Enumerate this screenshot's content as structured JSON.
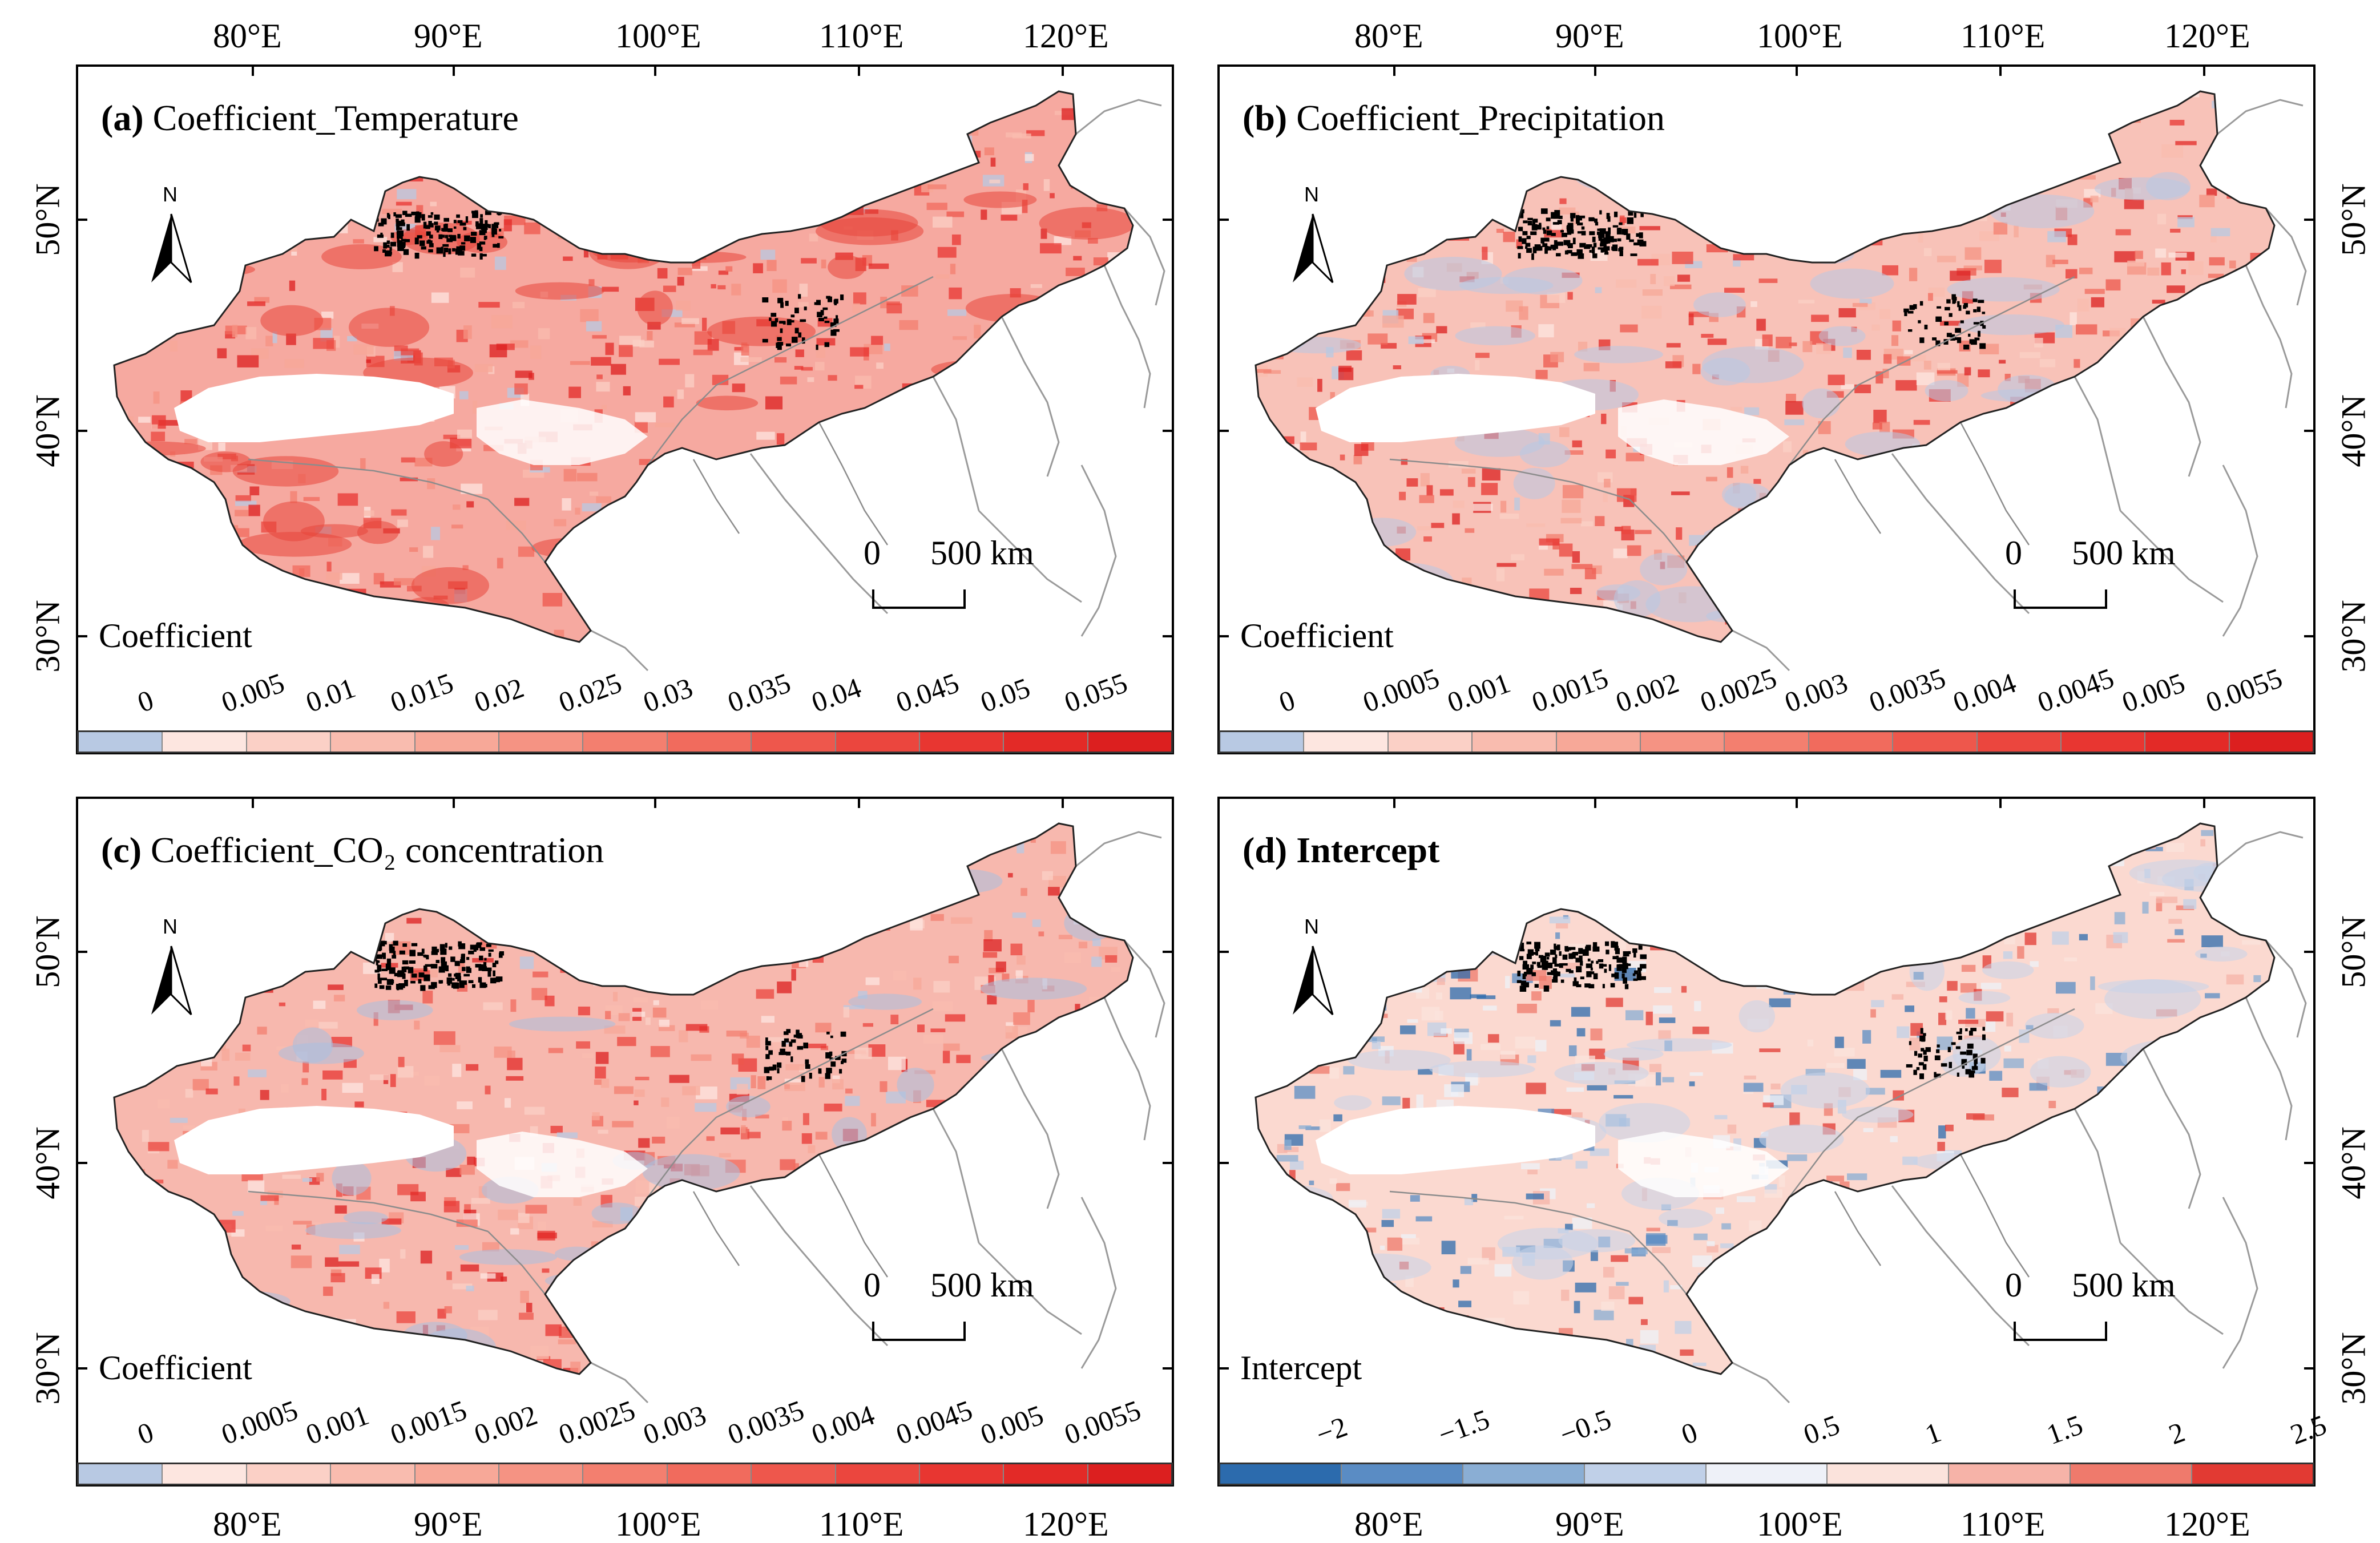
{
  "figure": {
    "lon_labels": [
      "80°E",
      "90°E",
      "100°E",
      "110°E",
      "120°E"
    ],
    "lat_labels": [
      "50°N",
      "40°N",
      "30°N"
    ],
    "north_label": "N",
    "scale_zero": "0",
    "scale_label": "500 km"
  },
  "panels": [
    {
      "letter": "(a)",
      "title": "Coefficient_Temperature",
      "legend_title": "Coefficient",
      "legend_ticks": [
        "0",
        "0.005",
        "0.01",
        "0.015",
        "0.02",
        "0.025",
        "0.03",
        "0.035",
        "0.04",
        "0.045",
        "0.05",
        "0.055"
      ],
      "legend_colors": [
        "#b8c9e3",
        "#fde6e0",
        "#fbd0c6",
        "#f9bcaf",
        "#f7a898",
        "#f59383",
        "#f37f6f",
        "#f16b5d",
        "#ee574c",
        "#eb463e",
        "#e83631",
        "#e32a27",
        "#dc1f1f"
      ],
      "fill": "#f6a9a0",
      "accent": "#e8453b"
    },
    {
      "letter": "(b)",
      "title": "Coefficient_Precipitation",
      "legend_title": "Coefficient",
      "legend_ticks": [
        "0",
        "0.0005",
        "0.001",
        "0.0015",
        "0.002",
        "0.0025",
        "0.003",
        "0.0035",
        "0.004",
        "0.0045",
        "0.005",
        "0.0055"
      ],
      "legend_colors": [
        "#b8c9e3",
        "#fde6e0",
        "#fbd0c6",
        "#f9bcaf",
        "#f7a898",
        "#f59383",
        "#f37f6f",
        "#f16b5d",
        "#ee574c",
        "#eb463e",
        "#e83631",
        "#e32a27",
        "#dc1f1f"
      ],
      "fill": "#f8c2b8",
      "accent": "#b8c9e3"
    },
    {
      "letter": "(c)",
      "title": "Coefficient_CO₂ concentration",
      "legend_title": "Coefficient",
      "legend_ticks": [
        "0",
        "0.0005",
        "0.001",
        "0.0015",
        "0.002",
        "0.0025",
        "0.003",
        "0.0035",
        "0.004",
        "0.0045",
        "0.005",
        "0.0055"
      ],
      "legend_colors": [
        "#b8c9e3",
        "#fde6e0",
        "#fbd0c6",
        "#f9bcaf",
        "#f7a898",
        "#f59383",
        "#f37f6f",
        "#f16b5d",
        "#ee574c",
        "#eb463e",
        "#e83631",
        "#e32a27",
        "#dc1f1f"
      ],
      "fill": "#f7b8ae",
      "accent": "#a9bfe0"
    },
    {
      "letter": "(d)",
      "title": "Intercept",
      "legend_title": "Intercept",
      "legend_ticks": [
        "−2",
        "−1.5",
        "−0.5",
        "0",
        "0.5",
        "1",
        "1.5",
        "2",
        "2.5"
      ],
      "legend_colors": [
        "#2c6bad",
        "#5a8cc4",
        "#8aaed4",
        "#c0d0e8",
        "#eef1f8",
        "#fbe3dc",
        "#f6b3a8",
        "#ef7a6c",
        "#e23a33"
      ],
      "fill": "#fbd9d0",
      "accent": "#c6d4ea"
    }
  ]
}
